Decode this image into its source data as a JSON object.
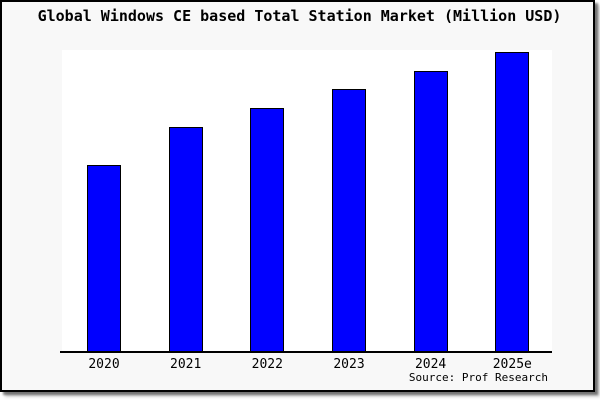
{
  "chart_data": {
    "type": "bar",
    "title": "Global Windows CE based Total Station Market (Million USD)",
    "categories": [
      "2020",
      "2021",
      "2022",
      "2023",
      "2024",
      "2025e"
    ],
    "values": [
      62.5,
      75.1,
      81.4,
      87.7,
      93.7,
      100.0
    ],
    "value_note": "No y-axis or data labels shown; values are relative bar heights as percent of the 2025e bar",
    "xlabel": "",
    "ylabel": "",
    "grid": false,
    "legend": false,
    "bar_color": "#0000ff",
    "bar_border_color": "#000000",
    "source": "Source: Prof Research"
  },
  "colors": {
    "background": "#f8f8f8",
    "plot_background": "#ffffff",
    "axis": "#000000",
    "text": "#000000",
    "frame_border": "#000000"
  }
}
